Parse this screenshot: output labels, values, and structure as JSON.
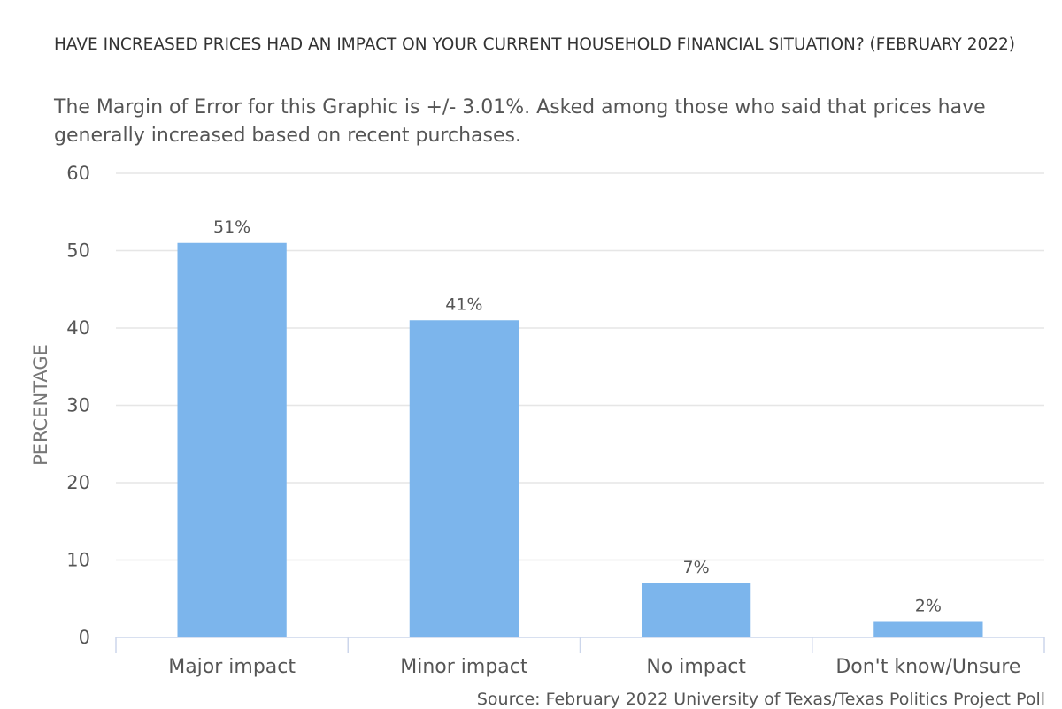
{
  "chart_data": {
    "type": "bar",
    "title": "HAVE INCREASED PRICES HAD AN IMPACT ON YOUR CURRENT HOUSEHOLD FINANCIAL SITUATION? (FEBRUARY 2022)",
    "subtitle": "The Margin of Error for this Graphic is +/- 3.01%. Asked among those who said that prices have generally increased based on recent purchases.",
    "categories": [
      "Major impact",
      "Minor impact",
      "No impact",
      "Don't know/Unsure"
    ],
    "values": [
      51,
      41,
      7,
      2
    ],
    "data_labels": [
      "51%",
      "41%",
      "7%",
      "2%"
    ],
    "xlabel": "",
    "ylabel": "PERCENTAGE",
    "ylim": [
      0,
      60
    ],
    "yticks": [
      0,
      10,
      20,
      30,
      40,
      50,
      60
    ],
    "grid": true,
    "legend": "none",
    "bar_color": "#7cb5ec",
    "source": "Source: February 2022 University of Texas/Texas Politics Project Poll"
  }
}
